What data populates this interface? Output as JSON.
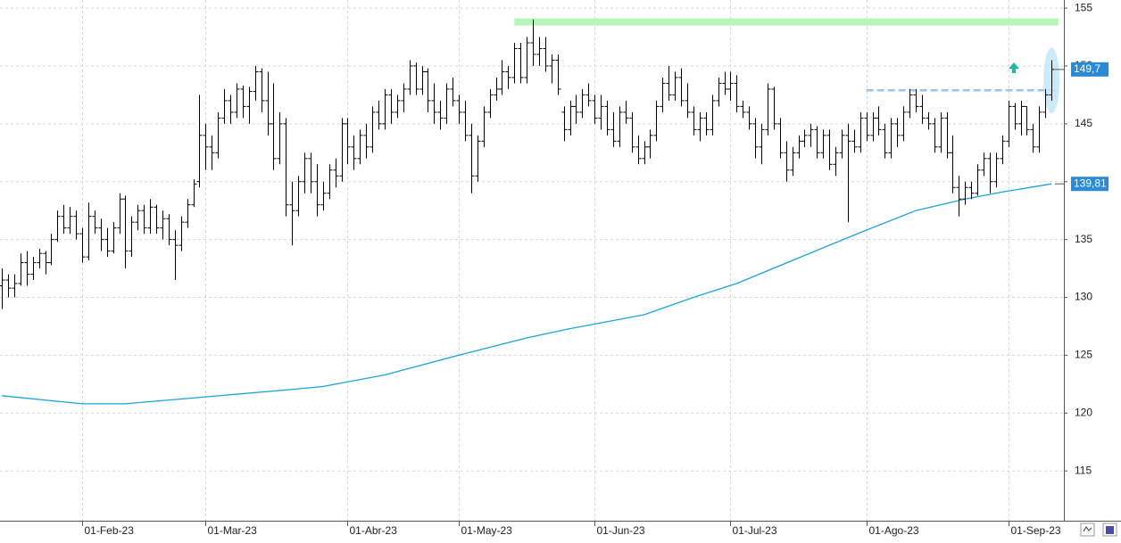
{
  "chart_data": {
    "type": "ohlc",
    "ohlc": [
      [
        131,
        132.5,
        129,
        131.5
      ],
      [
        131.5,
        132,
        130,
        130.8
      ],
      [
        130.8,
        132,
        130,
        131.2
      ],
      [
        131.2,
        133.8,
        131,
        133
      ],
      [
        133,
        134,
        131,
        132
      ],
      [
        132,
        133.5,
        131.5,
        133
      ],
      [
        133,
        134.2,
        132.5,
        133.8
      ],
      [
        133.8,
        134,
        132,
        133
      ],
      [
        133,
        135.5,
        132.8,
        135
      ],
      [
        135,
        137.5,
        134.8,
        137
      ],
      [
        137,
        138,
        135.5,
        136
      ],
      [
        136,
        137.8,
        135.5,
        137
      ],
      [
        137,
        137.5,
        135,
        135.5
      ],
      [
        135.5,
        136,
        133,
        133.5
      ],
      [
        133.5,
        138.2,
        133.2,
        137
      ],
      [
        137,
        137.5,
        135.5,
        136
      ],
      [
        136,
        136.8,
        134,
        135
      ],
      [
        135,
        136,
        133.5,
        134
      ],
      [
        134,
        136.5,
        133.8,
        136
      ],
      [
        136,
        139,
        135.5,
        138.5
      ],
      [
        138.5,
        138.8,
        132.5,
        134
      ],
      [
        134,
        137,
        133.5,
        136.5
      ],
      [
        136.5,
        138,
        135.8,
        137.5
      ],
      [
        137.5,
        138,
        135.5,
        136
      ],
      [
        136,
        138.5,
        135.5,
        137.8
      ],
      [
        137.8,
        138,
        135.5,
        136
      ],
      [
        136,
        137.5,
        135,
        136.8
      ],
      [
        136.8,
        137.2,
        134.5,
        135
      ],
      [
        135,
        135.8,
        131.5,
        134.5
      ],
      [
        134.5,
        137,
        134,
        136.5
      ],
      [
        136.5,
        138.5,
        136,
        138
      ],
      [
        138,
        140.2,
        137.8,
        139.8
      ],
      [
        140,
        147.5,
        139.5,
        144
      ],
      [
        144,
        145,
        141,
        143
      ],
      [
        143,
        144,
        141,
        142.5
      ],
      [
        142.5,
        146,
        142,
        145.5
      ],
      [
        145.5,
        148,
        145,
        147
      ],
      [
        147,
        147.5,
        145,
        146
      ],
      [
        146,
        148.5,
        145.5,
        148
      ],
      [
        148,
        148.3,
        145.5,
        146.5
      ],
      [
        146.5,
        148.2,
        145,
        147.8
      ],
      [
        147.8,
        150,
        147,
        149.5
      ],
      [
        149.5,
        149.8,
        146,
        147
      ],
      [
        147,
        149.5,
        144,
        145
      ],
      [
        145,
        148.5,
        141,
        142
      ],
      [
        142,
        146,
        141.5,
        145
      ],
      [
        145,
        145.5,
        137,
        138
      ],
      [
        138,
        140,
        134.5,
        137.5
      ],
      [
        137.5,
        140.5,
        137,
        140
      ],
      [
        140,
        142.5,
        139,
        142
      ],
      [
        142,
        142.5,
        139,
        140
      ],
      [
        140,
        141.5,
        137,
        138
      ],
      [
        138,
        140,
        137.5,
        139
      ],
      [
        139,
        141.5,
        138.5,
        141
      ],
      [
        141,
        142,
        139.5,
        140.5
      ],
      [
        140.5,
        145.5,
        140,
        145
      ],
      [
        145,
        145.5,
        141.5,
        143
      ],
      [
        143,
        144,
        141,
        142
      ],
      [
        142,
        144.5,
        141.5,
        144
      ],
      [
        144,
        145,
        142,
        143
      ],
      [
        143,
        146.5,
        142.5,
        146
      ],
      [
        146,
        147,
        144.5,
        145
      ],
      [
        145,
        148,
        144.5,
        147.5
      ],
      [
        147.5,
        148,
        145,
        146
      ],
      [
        146,
        147.5,
        145.5,
        147
      ],
      [
        147,
        148.5,
        146,
        148
      ],
      [
        148,
        150.5,
        147.5,
        150
      ],
      [
        150,
        150.3,
        147.5,
        148
      ],
      [
        148,
        150,
        147.5,
        149.5
      ],
      [
        149.5,
        149.8,
        146,
        147
      ],
      [
        147,
        148.5,
        145,
        146
      ],
      [
        146,
        147,
        144.5,
        145.5
      ],
      [
        145.5,
        148.5,
        145,
        148
      ],
      [
        148,
        149,
        146.5,
        147
      ],
      [
        147,
        147.5,
        145,
        146
      ],
      [
        146,
        147,
        143.5,
        144
      ],
      [
        144,
        145,
        139,
        140.5
      ],
      [
        140.5,
        144,
        140,
        143.5
      ],
      [
        143.5,
        146.5,
        143,
        146
      ],
      [
        146,
        148,
        145.5,
        147.5
      ],
      [
        147.5,
        149,
        147,
        148
      ],
      [
        148,
        150.5,
        147.5,
        149.5
      ],
      [
        149.5,
        150,
        148,
        149
      ],
      [
        149,
        152,
        148.5,
        151.5
      ],
      [
        151.5,
        152,
        148.5,
        149
      ],
      [
        149,
        152.5,
        148.5,
        152
      ],
      [
        152,
        154,
        150,
        151
      ],
      [
        151,
        152.5,
        150,
        151.5
      ],
      [
        151.5,
        152.5,
        149.5,
        150
      ],
      [
        150,
        151,
        148.5,
        150.5
      ],
      [
        150.5,
        151,
        147.5,
        148
      ],
      [
        146,
        146.5,
        143.5,
        144.5
      ],
      [
        144.5,
        147,
        144,
        146.5
      ],
      [
        146.5,
        147.5,
        145,
        146
      ],
      [
        146,
        148,
        145.5,
        147.5
      ],
      [
        147.5,
        148.5,
        146.5,
        147
      ],
      [
        147,
        147.5,
        145,
        145.5
      ],
      [
        145.5,
        147.5,
        144.5,
        146.5
      ],
      [
        146.5,
        147,
        144,
        144.5
      ],
      [
        144.5,
        146,
        143,
        143.5
      ],
      [
        143.5,
        146.5,
        143,
        146
      ],
      [
        146,
        147,
        145,
        145.5
      ],
      [
        145.5,
        146,
        142.5,
        143
      ],
      [
        143,
        144,
        141.5,
        142
      ],
      [
        142,
        143.5,
        141.5,
        143
      ],
      [
        143,
        144.5,
        142,
        144
      ],
      [
        144,
        147,
        143.5,
        146.5
      ],
      [
        146.5,
        149,
        146,
        148.5
      ],
      [
        148.5,
        150,
        147,
        147.5
      ],
      [
        147.5,
        149.5,
        147,
        149
      ],
      [
        149,
        149.8,
        146.5,
        147
      ],
      [
        147,
        148.5,
        145.5,
        146
      ],
      [
        146,
        146.5,
        144,
        144.5
      ],
      [
        144.5,
        146,
        143.5,
        145.5
      ],
      [
        145.5,
        146,
        144,
        144.5
      ],
      [
        144.5,
        147.5,
        144,
        147
      ],
      [
        147,
        149,
        146.5,
        148.5
      ],
      [
        148.5,
        149.5,
        147.5,
        148
      ],
      [
        148,
        149.5,
        147,
        148.5
      ],
      [
        148.5,
        149.2,
        146,
        146.5
      ],
      [
        146.5,
        147,
        145.5,
        146
      ],
      [
        146,
        146.5,
        144.5,
        145
      ],
      [
        145,
        145.5,
        142,
        143
      ],
      [
        143,
        145,
        141.5,
        144.5
      ],
      [
        144.5,
        148.5,
        144,
        148
      ],
      [
        148,
        148.2,
        144.5,
        145
      ],
      [
        145,
        145.5,
        142,
        142.5
      ],
      [
        142.5,
        143.5,
        140,
        141
      ],
      [
        141,
        143,
        140.5,
        142.5
      ],
      [
        142.5,
        144,
        142,
        143.5
      ],
      [
        143.5,
        144.5,
        143,
        144
      ],
      [
        144,
        145,
        143,
        144.5
      ],
      [
        144.5,
        144.8,
        142,
        142.5
      ],
      [
        142.5,
        144.5,
        142,
        144
      ],
      [
        144,
        144.5,
        141,
        141.5
      ],
      [
        141.5,
        143,
        140.5,
        142.5
      ],
      [
        142.5,
        144.5,
        142,
        144
      ],
      [
        144,
        145,
        136.5,
        143.5
      ],
      [
        143.5,
        144.5,
        142.5,
        143
      ],
      [
        143,
        146,
        142.5,
        145.5
      ],
      [
        145.5,
        146,
        143.5,
        144
      ],
      [
        144,
        146,
        143.5,
        145.5
      ],
      [
        145.5,
        146.5,
        144,
        144.5
      ],
      [
        144.5,
        145,
        142,
        142.5
      ],
      [
        142.5,
        145.5,
        142,
        145
      ],
      [
        145,
        145.5,
        143,
        144
      ],
      [
        144,
        146.5,
        143.5,
        146
      ],
      [
        146,
        148,
        145.5,
        147.5
      ],
      [
        147.5,
        148,
        146,
        146.5
      ],
      [
        146.5,
        147.5,
        145,
        145.5
      ],
      [
        145.5,
        146,
        144.5,
        145
      ],
      [
        145,
        145.5,
        142.5,
        143
      ],
      [
        143,
        146,
        142.5,
        145.5
      ],
      [
        145.5,
        146,
        142,
        142.5
      ],
      [
        142.5,
        144,
        139,
        139.5
      ],
      [
        139.5,
        140.5,
        137,
        138.5
      ],
      [
        138.5,
        140,
        138,
        139.5
      ],
      [
        139.5,
        140,
        138.5,
        139
      ],
      [
        139,
        141.5,
        138.8,
        141
      ],
      [
        141,
        142.5,
        140.5,
        142
      ],
      [
        142,
        142.5,
        139,
        140
      ],
      [
        140,
        142.5,
        139.5,
        142
      ],
      [
        142,
        144,
        141.5,
        143.5
      ],
      [
        143.5,
        147,
        143,
        146.5
      ],
      [
        146.5,
        146.8,
        144.5,
        145
      ],
      [
        145,
        147,
        144,
        146.5
      ],
      [
        146.5,
        146.5,
        144,
        144.5
      ],
      [
        144.5,
        145,
        142.5,
        143
      ],
      [
        143,
        146.5,
        142.5,
        146
      ],
      [
        146,
        148,
        145.5,
        147.5
      ],
      [
        147.5,
        150.5,
        147,
        149.7
      ]
    ],
    "color": "#000000",
    "ma": {
      "x": [
        0,
        13,
        20,
        33,
        46,
        52,
        62,
        74,
        85,
        92,
        104,
        112,
        119,
        129,
        139,
        148,
        156,
        162,
        170
      ],
      "values": [
        121.5,
        120.8,
        120.8,
        121.4,
        122.0,
        122.3,
        123.3,
        125.0,
        126.5,
        127.3,
        128.5,
        130.0,
        131.2,
        133.4,
        135.6,
        137.5,
        138.5,
        139.1,
        139.81
      ],
      "color": "#1ca3d8"
    },
    "last_price": {
      "value": 149.7,
      "label": "149,7"
    },
    "ma_last": {
      "value": 139.81,
      "label": "139,81"
    },
    "resistance": {
      "value": 153.8,
      "from": 83,
      "color": "#b8f5b8"
    },
    "breakout": {
      "value": 147.9,
      "from": 140,
      "color": "#9cc3e8"
    },
    "xlim": [
      -0.3,
      172
    ],
    "xticks": [
      {
        "value": 13,
        "label": "01-Feb-23"
      },
      {
        "value": 33,
        "label": "01-Mar-23"
      },
      {
        "value": 56,
        "label": "01-Abr-23"
      },
      {
        "value": 74,
        "label": "01-May-23"
      },
      {
        "value": 96,
        "label": "01-Jun-23"
      },
      {
        "value": 118,
        "label": "01-Jul-23"
      },
      {
        "value": 140,
        "label": "01-Ago-23"
      },
      {
        "value": 163,
        "label": "01-Sep-23"
      }
    ],
    "ylim": [
      110.7,
      155.7
    ],
    "yticks": [
      115,
      120,
      125,
      130,
      135,
      140,
      145,
      150,
      155
    ],
    "grid": true
  }
}
